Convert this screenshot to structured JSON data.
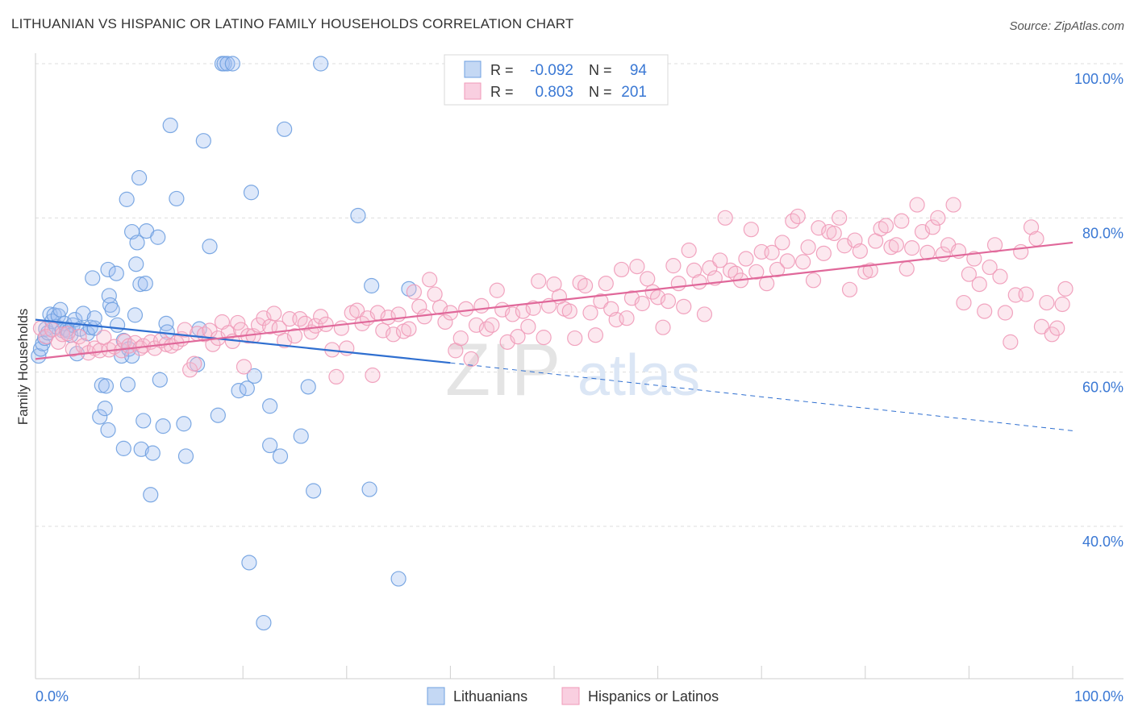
{
  "title": "LITHUANIAN VS HISPANIC OR LATINO FAMILY HOUSEHOLDS CORRELATION CHART",
  "source": "Source: ZipAtlas.com",
  "watermark": {
    "zip": "ZIP",
    "atlas": "atlas"
  },
  "legend": {
    "row1": {
      "r_label": "R =",
      "r_value": "-0.092",
      "n_label": "N =",
      "n_value": "94"
    },
    "row2": {
      "r_label": "R =",
      "r_value": "0.803",
      "n_label": "N =",
      "n_value": "201"
    }
  },
  "bottom_legend": {
    "series1": "Lithuanians",
    "series2": "Hispanics or Latinos"
  },
  "colors": {
    "blue": "#6fa0e0",
    "blue_line": "#2f6fd0",
    "pink": "#f09ab8",
    "pink_line": "#e0689a",
    "axis_text": "#3a78d4"
  },
  "chart_data": {
    "type": "scatter",
    "title": "LITHUANIAN VS HISPANIC OR LATINO FAMILY HOUSEHOLDS CORRELATION CHART",
    "xlabel": "",
    "ylabel": "Family Households",
    "xlim": [
      0,
      100
    ],
    "ylim": [
      20,
      104
    ],
    "x_tick_labels": [
      "0.0%",
      "100.0%"
    ],
    "y_ticks": [
      40,
      60,
      80,
      100
    ],
    "y_tick_labels": [
      "40.0%",
      "60.0%",
      "80.0%",
      "100.0%"
    ],
    "grid": true,
    "legend_position": "top-center",
    "series": [
      {
        "name": "Lithuanians",
        "R": -0.092,
        "N": 94,
        "trend": {
          "x0": 0,
          "y0": 66.8,
          "x1": 40,
          "y1": 61.2,
          "dashed_to_x": 100,
          "dashed_to_y": 52.4
        },
        "points": [
          [
            0.3,
            62.1
          ],
          [
            0.5,
            63.0
          ],
          [
            0.7,
            63.7
          ],
          [
            0.9,
            64.4
          ],
          [
            1.0,
            65.6
          ],
          [
            1.2,
            65.1
          ],
          [
            1.4,
            67.5
          ],
          [
            1.6,
            66.6
          ],
          [
            1.8,
            67.4
          ],
          [
            2.0,
            65.9
          ],
          [
            2.2,
            67.3
          ],
          [
            2.4,
            68.1
          ],
          [
            2.6,
            65.4
          ],
          [
            2.8,
            66.3
          ],
          [
            3.0,
            65.5
          ],
          [
            3.2,
            65.3
          ],
          [
            3.4,
            64.8
          ],
          [
            3.6,
            66.1
          ],
          [
            3.8,
            66.8
          ],
          [
            4.0,
            62.4
          ],
          [
            4.3,
            65.6
          ],
          [
            4.6,
            67.6
          ],
          [
            5.0,
            65.0
          ],
          [
            5.3,
            65.8
          ],
          [
            5.7,
            65.7
          ],
          [
            5.7,
            67.0
          ],
          [
            6.2,
            54.2
          ],
          [
            6.4,
            58.3
          ],
          [
            6.7,
            55.3
          ],
          [
            6.8,
            58.2
          ],
          [
            7.0,
            52.5
          ],
          [
            7.0,
            73.3
          ],
          [
            5.5,
            72.2
          ],
          [
            7.1,
            69.9
          ],
          [
            7.2,
            68.7
          ],
          [
            7.4,
            68.1
          ],
          [
            7.8,
            72.8
          ],
          [
            7.9,
            66.1
          ],
          [
            8.3,
            62.1
          ],
          [
            8.5,
            64.1
          ],
          [
            8.5,
            50.1
          ],
          [
            8.8,
            82.4
          ],
          [
            8.9,
            58.4
          ],
          [
            9.0,
            63.0
          ],
          [
            9.3,
            62.1
          ],
          [
            9.3,
            78.2
          ],
          [
            9.6,
            67.4
          ],
          [
            9.7,
            74.0
          ],
          [
            9.8,
            76.8
          ],
          [
            10.0,
            85.2
          ],
          [
            10.1,
            71.4
          ],
          [
            10.2,
            50.0
          ],
          [
            10.4,
            53.7
          ],
          [
            10.6,
            71.5
          ],
          [
            10.7,
            78.3
          ],
          [
            11.1,
            44.1
          ],
          [
            11.3,
            49.5
          ],
          [
            11.8,
            77.5
          ],
          [
            12.0,
            59.0
          ],
          [
            12.3,
            53.0
          ],
          [
            12.6,
            66.3
          ],
          [
            12.7,
            65.2
          ],
          [
            13.0,
            92.0
          ],
          [
            13.6,
            82.5
          ],
          [
            14.3,
            53.3
          ],
          [
            14.5,
            49.1
          ],
          [
            15.6,
            61.0
          ],
          [
            15.8,
            65.6
          ],
          [
            16.2,
            90.0
          ],
          [
            16.8,
            76.3
          ],
          [
            17.6,
            54.4
          ],
          [
            18.0,
            100.0
          ],
          [
            18.2,
            100.0
          ],
          [
            18.5,
            100.0
          ],
          [
            19.0,
            100.0
          ],
          [
            19.6,
            57.6
          ],
          [
            20.4,
            57.9
          ],
          [
            20.6,
            35.3
          ],
          [
            21.1,
            59.5
          ],
          [
            22.0,
            27.5
          ],
          [
            20.8,
            83.3
          ],
          [
            22.6,
            50.5
          ],
          [
            22.6,
            55.6
          ],
          [
            23.6,
            49.1
          ],
          [
            24.0,
            91.5
          ],
          [
            25.6,
            51.7
          ],
          [
            26.3,
            58.1
          ],
          [
            26.8,
            44.6
          ],
          [
            27.5,
            100.0
          ],
          [
            31.1,
            80.3
          ],
          [
            32.2,
            44.8
          ],
          [
            32.4,
            71.2
          ],
          [
            35.0,
            33.2
          ],
          [
            36.0,
            70.8
          ]
        ]
      },
      {
        "name": "Hispanics or Latinos",
        "R": 0.803,
        "N": 201,
        "trend": {
          "x0": 0,
          "y0": 61.7,
          "x1": 100,
          "y1": 76.8
        },
        "points": [
          [
            0.5,
            65.7
          ],
          [
            1.0,
            64.6
          ],
          [
            1.6,
            65.5
          ],
          [
            2.2,
            63.9
          ],
          [
            2.6,
            64.9
          ],
          [
            3.1,
            65.0
          ],
          [
            3.6,
            63.0
          ],
          [
            4.2,
            64.6
          ],
          [
            4.6,
            63.4
          ],
          [
            5.1,
            62.5
          ],
          [
            5.7,
            63.1
          ],
          [
            6.2,
            62.8
          ],
          [
            6.6,
            64.5
          ],
          [
            7.1,
            62.9
          ],
          [
            7.6,
            63.3
          ],
          [
            8.3,
            62.8
          ],
          [
            8.6,
            64.0
          ],
          [
            9.0,
            63.4
          ],
          [
            9.6,
            63.8
          ],
          [
            10.1,
            63.1
          ],
          [
            10.4,
            63.4
          ],
          [
            11.1,
            63.9
          ],
          [
            11.5,
            63.1
          ],
          [
            12.1,
            64.1
          ],
          [
            12.6,
            63.6
          ],
          [
            13.1,
            63.4
          ],
          [
            13.6,
            63.8
          ],
          [
            14.1,
            64.3
          ],
          [
            14.4,
            65.5
          ],
          [
            14.9,
            60.3
          ],
          [
            15.3,
            61.1
          ],
          [
            15.6,
            65.0
          ],
          [
            16.3,
            64.9
          ],
          [
            16.8,
            65.4
          ],
          [
            17.1,
            63.6
          ],
          [
            17.6,
            64.4
          ],
          [
            18.0,
            66.5
          ],
          [
            18.6,
            65.1
          ],
          [
            19.0,
            64.0
          ],
          [
            19.5,
            66.4
          ],
          [
            19.8,
            65.5
          ],
          [
            20.1,
            60.7
          ],
          [
            20.5,
            64.7
          ],
          [
            21.0,
            64.7
          ],
          [
            21.5,
            66.1
          ],
          [
            22.0,
            67.0
          ],
          [
            22.6,
            65.9
          ],
          [
            23.0,
            67.6
          ],
          [
            23.5,
            65.7
          ],
          [
            24.0,
            64.1
          ],
          [
            24.5,
            66.9
          ],
          [
            25.0,
            64.7
          ],
          [
            25.5,
            66.9
          ],
          [
            26.0,
            66.3
          ],
          [
            26.6,
            65.2
          ],
          [
            27.0,
            66.0
          ],
          [
            27.5,
            67.2
          ],
          [
            28.0,
            66.2
          ],
          [
            28.6,
            62.9
          ],
          [
            29.0,
            59.4
          ],
          [
            29.5,
            65.7
          ],
          [
            30.0,
            63.1
          ],
          [
            30.5,
            67.7
          ],
          [
            31.0,
            68.0
          ],
          [
            31.5,
            66.3
          ],
          [
            32.0,
            67.0
          ],
          [
            32.5,
            59.6
          ],
          [
            33.0,
            67.7
          ],
          [
            33.5,
            65.4
          ],
          [
            34.0,
            67.1
          ],
          [
            34.5,
            64.9
          ],
          [
            35.0,
            67.5
          ],
          [
            35.5,
            65.3
          ],
          [
            36.0,
            65.6
          ],
          [
            36.5,
            70.4
          ],
          [
            37.0,
            68.5
          ],
          [
            37.5,
            67.2
          ],
          [
            38.0,
            72.0
          ],
          [
            38.5,
            70.1
          ],
          [
            39.0,
            68.4
          ],
          [
            39.5,
            66.5
          ],
          [
            40.0,
            67.7
          ],
          [
            40.5,
            62.8
          ],
          [
            41.0,
            64.4
          ],
          [
            41.5,
            68.2
          ],
          [
            42.0,
            61.7
          ],
          [
            42.5,
            66.1
          ],
          [
            43.0,
            68.6
          ],
          [
            43.5,
            65.6
          ],
          [
            44.0,
            66.1
          ],
          [
            44.5,
            70.6
          ],
          [
            45.0,
            68.1
          ],
          [
            45.5,
            63.9
          ],
          [
            46.0,
            67.5
          ],
          [
            46.5,
            64.6
          ],
          [
            47.0,
            67.9
          ],
          [
            47.5,
            65.9
          ],
          [
            48.0,
            68.3
          ],
          [
            48.5,
            71.8
          ],
          [
            49.0,
            64.5
          ],
          [
            49.5,
            68.6
          ],
          [
            50.0,
            71.4
          ],
          [
            50.5,
            69.8
          ],
          [
            51.0,
            68.2
          ],
          [
            51.5,
            67.9
          ],
          [
            52.0,
            64.4
          ],
          [
            52.5,
            71.6
          ],
          [
            53.0,
            71.2
          ],
          [
            53.5,
            67.7
          ],
          [
            54.0,
            64.8
          ],
          [
            54.5,
            69.2
          ],
          [
            55.0,
            71.5
          ],
          [
            55.5,
            68.2
          ],
          [
            56.0,
            66.8
          ],
          [
            56.5,
            73.3
          ],
          [
            57.0,
            67.0
          ],
          [
            57.5,
            69.6
          ],
          [
            58.0,
            73.7
          ],
          [
            58.5,
            68.9
          ],
          [
            59.0,
            72.1
          ],
          [
            59.5,
            70.4
          ],
          [
            60.0,
            69.7
          ],
          [
            60.5,
            65.8
          ],
          [
            61.0,
            69.2
          ],
          [
            61.5,
            73.8
          ],
          [
            62.0,
            71.5
          ],
          [
            62.5,
            68.5
          ],
          [
            63.0,
            75.8
          ],
          [
            63.5,
            73.2
          ],
          [
            64.0,
            71.7
          ],
          [
            64.5,
            67.5
          ],
          [
            65.0,
            73.5
          ],
          [
            65.5,
            72.2
          ],
          [
            66.0,
            74.5
          ],
          [
            66.5,
            80.0
          ],
          [
            67.0,
            73.2
          ],
          [
            67.5,
            72.8
          ],
          [
            68.0,
            71.9
          ],
          [
            68.5,
            74.7
          ],
          [
            69.0,
            78.5
          ],
          [
            69.5,
            73.0
          ],
          [
            70.0,
            75.6
          ],
          [
            70.5,
            71.5
          ],
          [
            71.0,
            75.5
          ],
          [
            71.5,
            73.3
          ],
          [
            72.0,
            76.8
          ],
          [
            72.5,
            74.4
          ],
          [
            73.0,
            79.6
          ],
          [
            73.5,
            80.2
          ],
          [
            74.0,
            74.3
          ],
          [
            74.5,
            76.2
          ],
          [
            75.0,
            71.9
          ],
          [
            75.5,
            78.7
          ],
          [
            76.0,
            75.4
          ],
          [
            76.5,
            78.2
          ],
          [
            77.0,
            78.0
          ],
          [
            77.5,
            80.0
          ],
          [
            78.0,
            76.4
          ],
          [
            78.5,
            70.7
          ],
          [
            79.0,
            77.1
          ],
          [
            79.5,
            75.7
          ],
          [
            80.0,
            73.0
          ],
          [
            80.5,
            73.2
          ],
          [
            81.0,
            77.0
          ],
          [
            81.5,
            78.6
          ],
          [
            82.0,
            79.0
          ],
          [
            82.5,
            76.2
          ],
          [
            83.0,
            76.5
          ],
          [
            83.5,
            79.6
          ],
          [
            84.0,
            73.4
          ],
          [
            84.5,
            76.1
          ],
          [
            85.0,
            81.7
          ],
          [
            85.5,
            78.2
          ],
          [
            86.0,
            75.5
          ],
          [
            86.5,
            78.8
          ],
          [
            87.0,
            80.0
          ],
          [
            87.5,
            75.3
          ],
          [
            88.0,
            76.5
          ],
          [
            88.5,
            81.7
          ],
          [
            89.0,
            75.7
          ],
          [
            89.5,
            69.0
          ],
          [
            90.0,
            72.7
          ],
          [
            90.5,
            74.7
          ],
          [
            91.0,
            71.4
          ],
          [
            91.5,
            67.9
          ],
          [
            92.0,
            73.6
          ],
          [
            92.5,
            76.5
          ],
          [
            93.0,
            72.4
          ],
          [
            93.5,
            67.7
          ],
          [
            94.0,
            63.9
          ],
          [
            94.5,
            70.0
          ],
          [
            95.0,
            75.6
          ],
          [
            95.5,
            70.1
          ],
          [
            96.0,
            78.8
          ],
          [
            96.5,
            77.3
          ],
          [
            97.0,
            65.9
          ],
          [
            97.5,
            69.0
          ],
          [
            98.0,
            64.9
          ],
          [
            98.5,
            65.7
          ],
          [
            99.0,
            68.8
          ],
          [
            99.3,
            70.8
          ]
        ]
      }
    ]
  }
}
